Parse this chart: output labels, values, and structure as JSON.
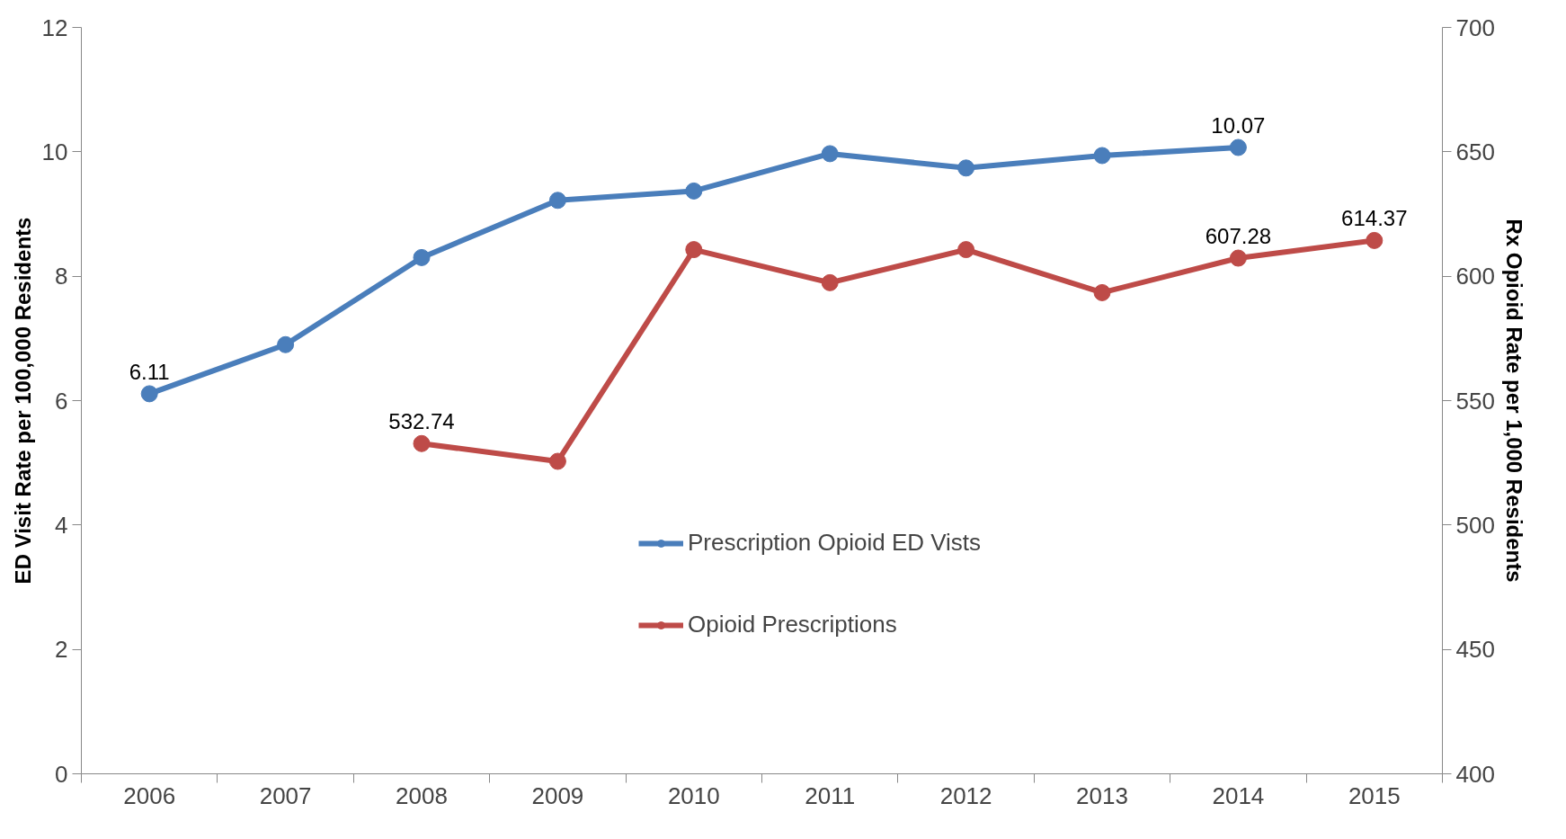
{
  "chart_data": {
    "type": "line",
    "categories": [
      "2006",
      "2007",
      "2008",
      "2009",
      "2010",
      "2011",
      "2012",
      "2013",
      "2014",
      "2015"
    ],
    "ylabel": "ED Visit Rate per 100,000 Residents",
    "y2label": "Rx Opioid Rate per 1,000 Residents",
    "ylim": [
      0,
      12
    ],
    "yticks": [
      0,
      2,
      4,
      6,
      8,
      10,
      12
    ],
    "y2lim": [
      400,
      700
    ],
    "y2ticks": [
      400,
      450,
      500,
      550,
      600,
      650,
      700
    ],
    "series": [
      {
        "name": "Prescription Opioid ED Vists",
        "color": "#4a7ebb",
        "values": [
          6.11,
          6.9,
          8.3,
          9.22,
          9.37,
          9.97,
          9.74,
          9.94,
          10.07,
          null
        ],
        "value_labels": [
          "6.11",
          null,
          null,
          null,
          null,
          null,
          null,
          null,
          "10.07",
          null
        ]
      },
      {
        "name": "Opioid Prescriptions",
        "color": "#be4b48",
        "axis": "y2",
        "values": [
          null,
          null,
          532.74,
          525.6,
          610.7,
          597.4,
          610.7,
          593.4,
          607.28,
          614.37
        ],
        "value_labels": [
          null,
          null,
          "532.74",
          null,
          null,
          null,
          null,
          null,
          "607.28",
          "614.37"
        ]
      }
    ],
    "marker": "circle",
    "line_style": "solid",
    "grid": false,
    "legend": "bottom"
  }
}
